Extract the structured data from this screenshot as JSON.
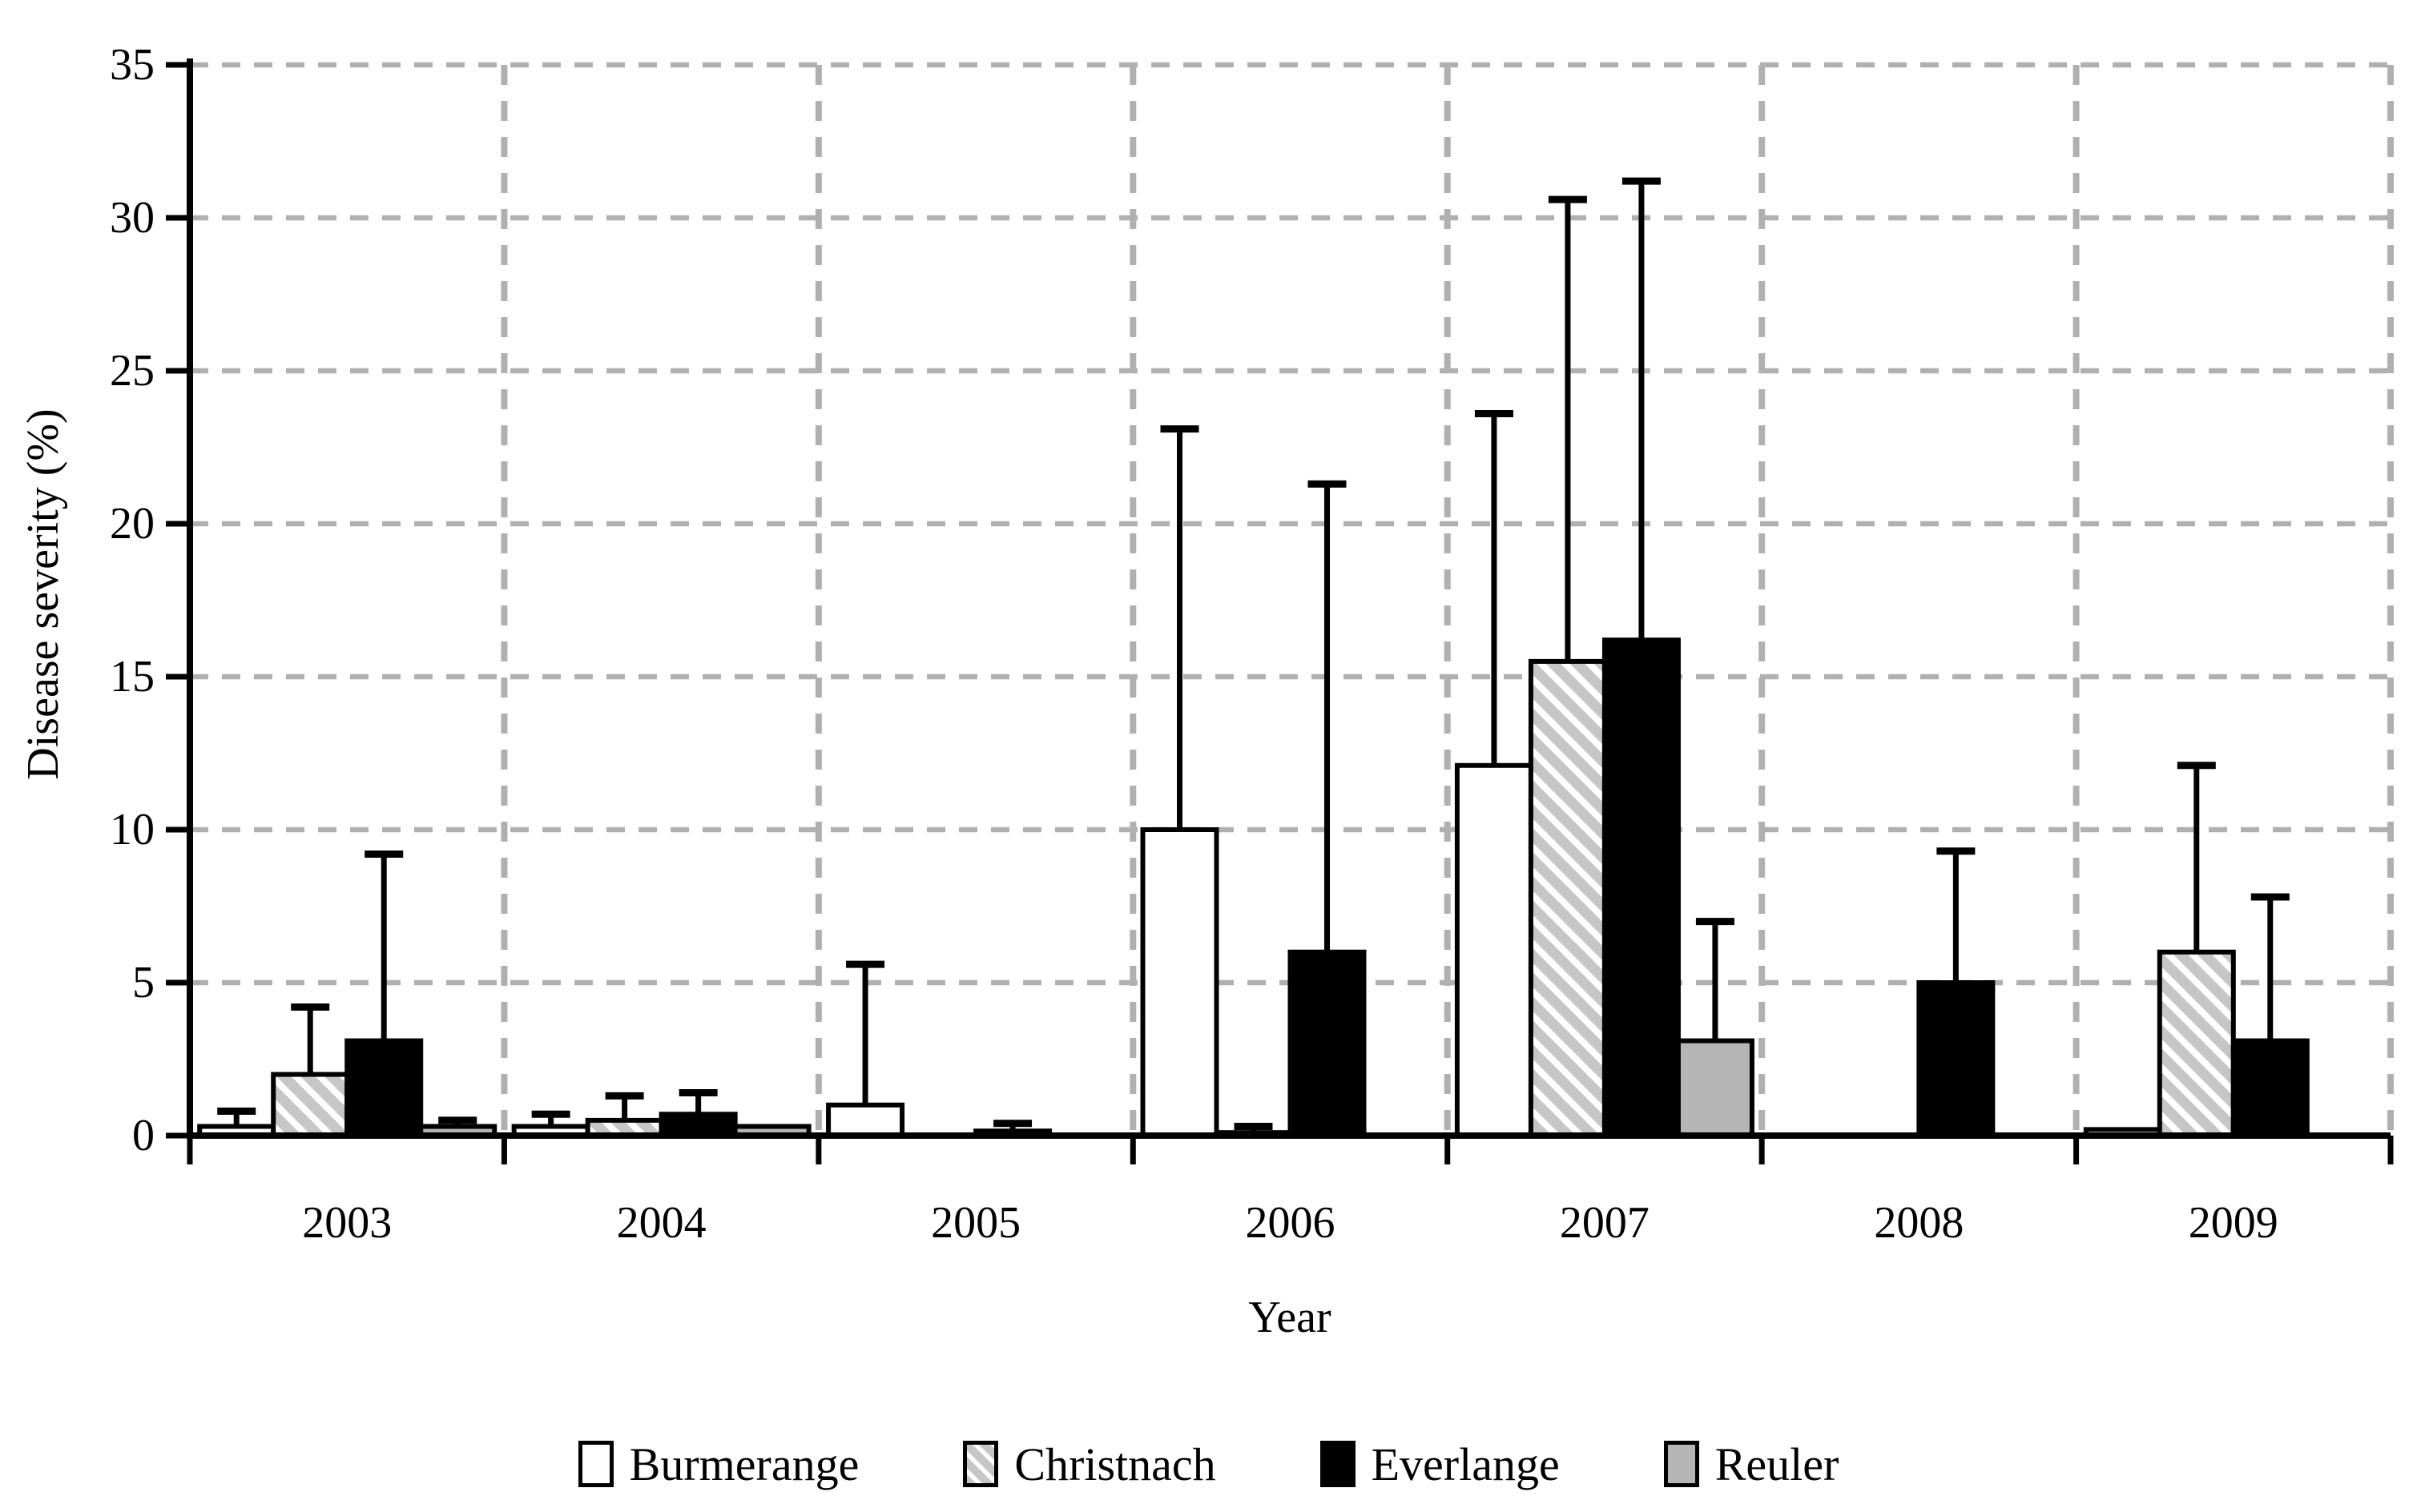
{
  "chart_data": {
    "type": "bar",
    "title": "",
    "xlabel": "Year",
    "ylabel": "Disease severity (%)",
    "ylim": [
      0,
      35
    ],
    "y_tick_step": 5,
    "y_tick_labels": [
      "0",
      "5",
      "10",
      "15",
      "20",
      "25",
      "30",
      "35"
    ],
    "grid": "dashed",
    "legend_position": "bottom",
    "categories": [
      "2003",
      "2004",
      "2005",
      "2006",
      "2007",
      "2008",
      "2009"
    ],
    "series": [
      {
        "name": "Burmerange",
        "fill": "white",
        "values": [
          0.3,
          0.3,
          1.0,
          10.0,
          12.1,
          0,
          0.2
        ],
        "errors_upper": [
          0.8,
          0.7,
          5.6,
          23.1,
          23.6,
          null,
          null
        ]
      },
      {
        "name": "Christnach",
        "fill": "hatch",
        "values": [
          2.0,
          0.5,
          0,
          0.1,
          15.5,
          0,
          6.0
        ],
        "errors_upper": [
          4.2,
          1.3,
          null,
          0.3,
          30.6,
          null,
          12.1
        ]
      },
      {
        "name": "Everlange",
        "fill": "black",
        "values": [
          3.1,
          0.7,
          0.15,
          6.0,
          16.2,
          5.0,
          3.1
        ],
        "errors_upper": [
          9.2,
          1.4,
          0.4,
          21.3,
          31.2,
          9.3,
          7.8
        ]
      },
      {
        "name": "Reuler",
        "fill": "gray",
        "values": [
          0.3,
          0.3,
          0,
          0,
          3.1,
          0,
          0
        ],
        "errors_upper": [
          0.5,
          null,
          null,
          null,
          7.0,
          null,
          null
        ]
      }
    ]
  },
  "colors": {
    "background": "#ffffff",
    "bar_outline": "#000000",
    "gridline": "#b0b0b0",
    "hatch_stripe": "#c6c6c6",
    "gray_fill": "#b5b5b5",
    "text": "#000000"
  }
}
